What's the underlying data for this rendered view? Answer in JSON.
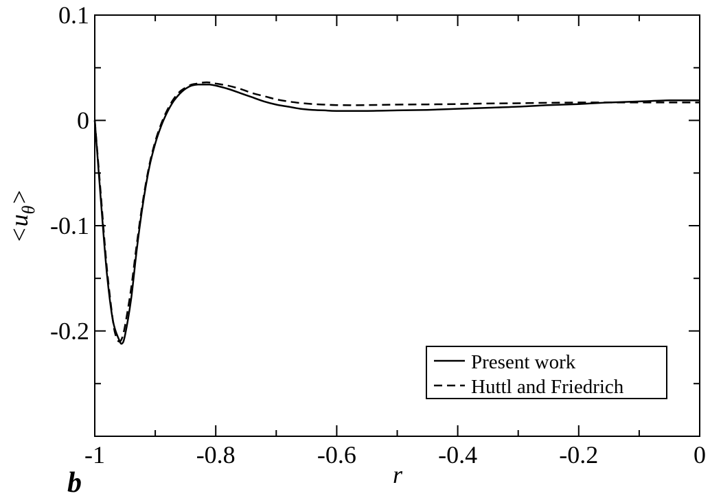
{
  "panel_label": "b",
  "chart_data": {
    "type": "line",
    "xlabel": "r",
    "ylabel": "<u_θ>",
    "xlim": [
      -1,
      0
    ],
    "ylim": [
      -0.3,
      0.1
    ],
    "x_ticks": [
      -1,
      -0.8,
      -0.6,
      -0.4,
      -0.2,
      0
    ],
    "x_tick_labels": [
      "-1",
      "-0.8",
      "-0.6",
      "-0.4",
      "-0.2",
      "0"
    ],
    "y_ticks": [
      0.1,
      0,
      -0.1,
      -0.2
    ],
    "y_tick_labels": [
      "0.1",
      "0",
      "-0.1",
      "-0.2"
    ],
    "grid": false,
    "legend_position": "bottom-right",
    "series": [
      {
        "name": "Present work",
        "style": "solid",
        "x": [
          -1.0,
          -0.99,
          -0.98,
          -0.97,
          -0.96,
          -0.955,
          -0.95,
          -0.94,
          -0.93,
          -0.92,
          -0.91,
          -0.9,
          -0.89,
          -0.88,
          -0.87,
          -0.86,
          -0.85,
          -0.84,
          -0.83,
          -0.82,
          -0.81,
          -0.8,
          -0.78,
          -0.76,
          -0.74,
          -0.72,
          -0.7,
          -0.68,
          -0.66,
          -0.64,
          -0.62,
          -0.6,
          -0.55,
          -0.5,
          -0.45,
          -0.4,
          -0.35,
          -0.3,
          -0.25,
          -0.2,
          -0.15,
          -0.1,
          -0.05,
          0.0
        ],
        "y": [
          0.0,
          -0.075,
          -0.145,
          -0.19,
          -0.208,
          -0.212,
          -0.204,
          -0.17,
          -0.12,
          -0.078,
          -0.045,
          -0.022,
          -0.005,
          0.008,
          0.018,
          0.025,
          0.03,
          0.033,
          0.034,
          0.034,
          0.034,
          0.033,
          0.03,
          0.026,
          0.022,
          0.018,
          0.015,
          0.013,
          0.011,
          0.01,
          0.0095,
          0.009,
          0.009,
          0.0095,
          0.01,
          0.011,
          0.012,
          0.013,
          0.0145,
          0.0155,
          0.017,
          0.018,
          0.019,
          0.019
        ]
      },
      {
        "name": "Huttl and Friedrich",
        "style": "dashed",
        "x": [
          -1.0,
          -0.99,
          -0.98,
          -0.97,
          -0.965,
          -0.96,
          -0.955,
          -0.95,
          -0.94,
          -0.93,
          -0.92,
          -0.91,
          -0.9,
          -0.89,
          -0.88,
          -0.87,
          -0.86,
          -0.85,
          -0.84,
          -0.83,
          -0.82,
          -0.81,
          -0.8,
          -0.78,
          -0.76,
          -0.74,
          -0.72,
          -0.7,
          -0.68,
          -0.66,
          -0.64,
          -0.62,
          -0.6,
          -0.55,
          -0.5,
          -0.45,
          -0.4,
          -0.35,
          -0.3,
          -0.25,
          -0.2,
          -0.15,
          -0.1,
          -0.05,
          0.0
        ],
        "y": [
          0.0,
          -0.07,
          -0.14,
          -0.19,
          -0.205,
          -0.21,
          -0.207,
          -0.195,
          -0.16,
          -0.115,
          -0.075,
          -0.043,
          -0.02,
          -0.003,
          0.01,
          0.02,
          0.027,
          0.031,
          0.034,
          0.035,
          0.036,
          0.036,
          0.035,
          0.033,
          0.03,
          0.026,
          0.023,
          0.02,
          0.018,
          0.0165,
          0.0155,
          0.015,
          0.0145,
          0.0145,
          0.015,
          0.0152,
          0.0155,
          0.016,
          0.0163,
          0.0167,
          0.017,
          0.017,
          0.017,
          0.017,
          0.017
        ]
      }
    ]
  }
}
